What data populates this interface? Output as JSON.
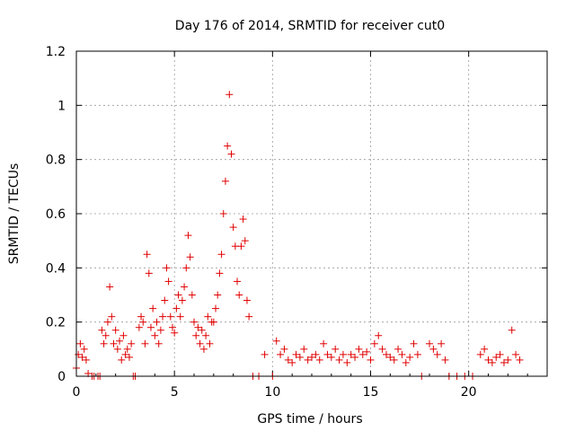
{
  "chart_data": {
    "type": "scatter",
    "title": "Day 176 of 2014, SRMTID for receiver cut0",
    "xlabel": "GPS time / hours",
    "ylabel": "SRMTID / TECUs",
    "xlim": [
      0,
      24
    ],
    "ylim": [
      0,
      1.2
    ],
    "xticks": [
      0,
      5,
      10,
      15,
      20
    ],
    "yticks": [
      0,
      0.2,
      0.4,
      0.6,
      0.8,
      1,
      1.2
    ],
    "ytick_labels": [
      "0",
      "0.2",
      "0.4",
      "0.6",
      "0.8",
      "1",
      "1.2"
    ],
    "xtick_labels": [
      "0",
      "5",
      "10",
      "15",
      "20"
    ],
    "grid": true,
    "marker": "+",
    "color": "#e00000",
    "series": [
      {
        "name": "SRMTID",
        "x": [
          0.0,
          0.1,
          0.2,
          0.3,
          0.4,
          0.5,
          0.6,
          0.8,
          0.9,
          1.1,
          1.2,
          1.3,
          1.4,
          1.5,
          1.6,
          1.7,
          1.8,
          1.9,
          2.0,
          2.1,
          2.2,
          2.3,
          2.4,
          2.5,
          2.6,
          2.7,
          2.8,
          2.9,
          3.0,
          3.2,
          3.3,
          3.4,
          3.5,
          3.6,
          3.7,
          3.8,
          3.9,
          4.0,
          4.1,
          4.2,
          4.3,
          4.4,
          4.5,
          4.6,
          4.7,
          4.8,
          4.9,
          5.0,
          5.1,
          5.2,
          5.3,
          5.4,
          5.5,
          5.6,
          5.7,
          5.8,
          5.9,
          6.0,
          6.1,
          6.2,
          6.3,
          6.4,
          6.5,
          6.6,
          6.7,
          6.8,
          6.9,
          7.0,
          7.1,
          7.2,
          7.3,
          7.4,
          7.5,
          7.6,
          7.7,
          7.8,
          7.9,
          8.0,
          8.1,
          8.2,
          8.3,
          8.4,
          8.5,
          8.6,
          8.7,
          8.8,
          9.0,
          9.3,
          9.6,
          10.0,
          10.2,
          10.4,
          10.6,
          10.8,
          11.0,
          11.2,
          11.4,
          11.6,
          11.8,
          12.0,
          12.2,
          12.4,
          12.6,
          12.8,
          13.0,
          13.2,
          13.4,
          13.6,
          13.8,
          14.0,
          14.2,
          14.4,
          14.6,
          14.8,
          15.0,
          15.2,
          15.4,
          15.6,
          15.8,
          16.0,
          16.2,
          16.4,
          16.6,
          16.8,
          17.0,
          17.2,
          17.4,
          17.6,
          18.0,
          18.2,
          18.4,
          18.6,
          18.8,
          19.0,
          19.4,
          19.8,
          20.2,
          20.6,
          20.8,
          21.0,
          21.2,
          21.4,
          21.6,
          21.8,
          22.0,
          22.2,
          22.4,
          22.6
        ],
        "y": [
          0.03,
          0.08,
          0.12,
          0.07,
          0.1,
          0.06,
          0.01,
          0.0,
          0.0,
          0.0,
          0.0,
          0.17,
          0.12,
          0.15,
          0.2,
          0.33,
          0.22,
          0.12,
          0.17,
          0.1,
          0.13,
          0.06,
          0.15,
          0.08,
          0.1,
          0.07,
          0.12,
          0.0,
          0.0,
          0.18,
          0.22,
          0.2,
          0.12,
          0.45,
          0.38,
          0.18,
          0.25,
          0.15,
          0.2,
          0.12,
          0.17,
          0.22,
          0.28,
          0.4,
          0.35,
          0.22,
          0.18,
          0.16,
          0.25,
          0.3,
          0.22,
          0.28,
          0.33,
          0.4,
          0.52,
          0.44,
          0.3,
          0.2,
          0.15,
          0.18,
          0.12,
          0.17,
          0.1,
          0.15,
          0.22,
          0.12,
          0.2,
          0.2,
          0.25,
          0.3,
          0.38,
          0.45,
          0.6,
          0.72,
          0.85,
          1.04,
          0.82,
          0.55,
          0.48,
          0.35,
          0.3,
          0.48,
          0.58,
          0.5,
          0.28,
          0.22,
          0.0,
          0.0,
          0.08,
          0.0,
          0.13,
          0.08,
          0.1,
          0.06,
          0.05,
          0.08,
          0.07,
          0.1,
          0.06,
          0.07,
          0.08,
          0.06,
          0.12,
          0.08,
          0.07,
          0.1,
          0.06,
          0.08,
          0.05,
          0.08,
          0.07,
          0.1,
          0.08,
          0.09,
          0.06,
          0.12,
          0.15,
          0.1,
          0.08,
          0.07,
          0.06,
          0.1,
          0.08,
          0.05,
          0.07,
          0.12,
          0.08,
          0.0,
          0.12,
          0.1,
          0.08,
          0.12,
          0.06,
          0.0,
          0.0,
          0.0,
          0.0,
          0.08,
          0.1,
          0.06,
          0.05,
          0.07,
          0.08,
          0.05,
          0.06,
          0.17,
          0.08,
          0.06
        ]
      }
    ]
  }
}
